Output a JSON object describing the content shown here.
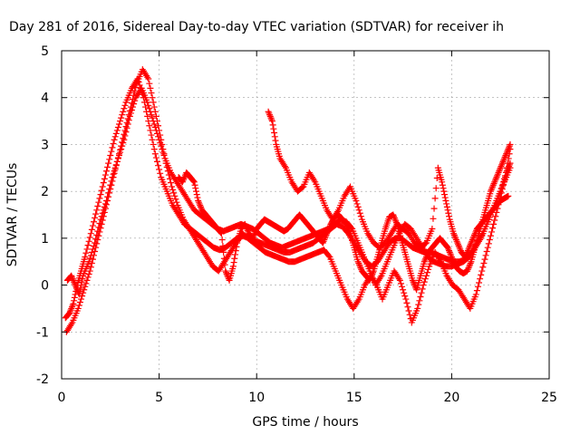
{
  "chart_data": {
    "type": "scatter",
    "title": "Day 281 of 2016, Sidereal Day-to-day VTEC variation (SDTVAR) for receiver ih",
    "xlabel": "GPS time / hours",
    "ylabel": "SDTVAR / TECUs",
    "xlim": [
      0,
      25
    ],
    "ylim": [
      -2,
      5
    ],
    "xticks": [
      "0",
      "5",
      "10",
      "15",
      "20",
      "25"
    ],
    "yticks": [
      "-2",
      "-1",
      "0",
      "1",
      "2",
      "3",
      "4",
      "5"
    ],
    "xtick_values": [
      0,
      5,
      10,
      15,
      20,
      25
    ],
    "ytick_values": [
      -2,
      -1,
      0,
      1,
      2,
      3,
      4,
      5
    ],
    "grid": true,
    "marker": "+",
    "color": "#ff0000",
    "series": [
      {
        "x": [
          0.2,
          0.4,
          0.6,
          0.8,
          1.0,
          1.2,
          1.5,
          1.8,
          2.1,
          2.4,
          2.7,
          3.0,
          3.3,
          3.6,
          3.9,
          4.2,
          4.5,
          4.8,
          5.1,
          5.4,
          5.7,
          6.0,
          6.3,
          6.6,
          6.9,
          7.2,
          7.5,
          7.8,
          8.1,
          8.4,
          8.7,
          9.0,
          9.3,
          9.6,
          9.9,
          10.2,
          10.5,
          10.8,
          11.1,
          11.4,
          11.7,
          12.0,
          12.3,
          12.6,
          12.9,
          13.2,
          13.5,
          13.8,
          14.1,
          14.4,
          14.7,
          15.0,
          15.3,
          15.6,
          15.9,
          16.2,
          16.5,
          16.8,
          17.1,
          17.4,
          17.7,
          18.0,
          18.3,
          18.6,
          18.9,
          19.2,
          19.5,
          19.8,
          20.1,
          20.4,
          20.7,
          21.0,
          21.3,
          21.6,
          21.9,
          22.2,
          22.5,
          22.8,
          23.0
        ],
        "y": [
          -0.7,
          -0.6,
          -0.4,
          0.0,
          0.3,
          0.6,
          1.1,
          1.6,
          2.1,
          2.6,
          3.1,
          3.5,
          3.9,
          4.2,
          4.4,
          4.0,
          3.4,
          2.8,
          2.3,
          2.0,
          1.7,
          1.5,
          1.3,
          1.2,
          1.1,
          1.0,
          0.9,
          0.8,
          0.75,
          0.8,
          0.9,
          1.0,
          1.05,
          1.0,
          0.95,
          0.9,
          0.85,
          0.8,
          0.75,
          0.7,
          0.7,
          0.75,
          0.8,
          0.85,
          0.9,
          1.0,
          1.1,
          1.2,
          1.3,
          1.25,
          1.1,
          0.9,
          0.7,
          0.5,
          0.4,
          0.5,
          0.7,
          0.9,
          1.0,
          1.0,
          0.9,
          0.8,
          0.75,
          0.7,
          0.7,
          0.65,
          0.6,
          0.55,
          0.5,
          0.5,
          0.55,
          0.7,
          0.9,
          1.1,
          1.4,
          1.7,
          2.0,
          2.4,
          2.6
        ]
      },
      {
        "x": [
          0.3,
          0.5,
          0.7,
          0.9,
          1.1,
          1.4,
          1.7,
          2.0,
          2.3,
          2.6,
          2.9,
          3.2,
          3.5,
          3.8,
          4.1,
          4.4,
          4.7,
          5.0,
          5.3,
          5.6,
          5.9,
          6.2,
          6.5,
          6.8,
          7.1,
          7.4,
          7.7,
          8.0,
          8.3,
          8.6,
          8.9,
          9.2,
          9.5,
          9.8,
          10.1,
          10.4,
          10.7,
          11.0,
          11.3,
          11.6,
          11.9,
          12.2,
          12.5,
          12.8,
          13.1,
          13.4,
          13.7,
          14.0,
          14.3,
          14.6,
          14.9,
          15.2,
          15.5,
          15.8,
          16.1,
          16.4,
          16.7,
          17.0,
          17.3,
          17.6,
          17.9,
          18.2,
          18.5,
          18.8,
          19.1,
          19.4,
          19.7,
          20.0,
          20.3,
          20.6,
          20.9,
          21.2,
          21.5,
          21.8,
          22.1,
          22.4,
          22.7,
          23.0
        ],
        "y": [
          0.1,
          0.2,
          0.0,
          -0.2,
          0.2,
          0.5,
          0.9,
          1.4,
          1.8,
          2.3,
          2.7,
          3.1,
          3.6,
          4.0,
          4.2,
          3.9,
          3.5,
          3.1,
          2.7,
          2.4,
          2.2,
          2.0,
          1.8,
          1.6,
          1.5,
          1.4,
          1.3,
          1.2,
          1.15,
          1.2,
          1.25,
          1.3,
          1.25,
          1.2,
          1.1,
          1.0,
          0.9,
          0.85,
          0.8,
          0.85,
          0.9,
          0.95,
          1.0,
          1.05,
          1.1,
          1.15,
          1.2,
          1.3,
          1.4,
          1.35,
          1.2,
          0.9,
          0.6,
          0.3,
          0.0,
          0.2,
          0.5,
          0.8,
          1.1,
          1.3,
          1.2,
          1.0,
          0.8,
          0.6,
          0.5,
          0.45,
          0.4,
          0.4,
          0.45,
          0.5,
          0.6,
          0.8,
          1.0,
          1.3,
          1.6,
          1.9,
          2.2,
          2.5
        ]
      },
      {
        "x": [
          0.25,
          0.55,
          0.85,
          1.15,
          1.45,
          1.75,
          2.05,
          2.35,
          2.65,
          2.95,
          3.25,
          3.55,
          3.85,
          4.15,
          4.45,
          4.75,
          5.05,
          5.35,
          5.65,
          5.95,
          6.25,
          6.55,
          6.85,
          7.15,
          7.45,
          7.75,
          8.05,
          8.35,
          8.65,
          8.95,
          9.25,
          9.55,
          9.85,
          10.15,
          10.45,
          10.75,
          11.05,
          11.35,
          11.65,
          11.95,
          12.25,
          12.55,
          12.85,
          13.15,
          13.45,
          13.75,
          14.05,
          14.35,
          14.65,
          14.95,
          15.25,
          15.55,
          15.85,
          16.15,
          16.45,
          16.75,
          17.05,
          17.35,
          17.65,
          17.95,
          18.25,
          18.55,
          18.85,
          19.15,
          19.45,
          19.75,
          20.05,
          20.35,
          20.65,
          20.95,
          21.25,
          21.55,
          21.85,
          22.15,
          22.45,
          22.75,
          23.0
        ],
        "y": [
          -1.0,
          -0.8,
          -0.5,
          -0.1,
          0.3,
          0.8,
          1.3,
          1.8,
          2.3,
          2.8,
          3.3,
          3.8,
          4.3,
          4.6,
          4.4,
          3.8,
          3.2,
          2.6,
          2.1,
          1.7,
          1.4,
          1.2,
          1.0,
          0.8,
          0.6,
          0.4,
          0.3,
          0.5,
          0.7,
          0.9,
          1.1,
          1.0,
          0.9,
          0.8,
          0.7,
          0.65,
          0.6,
          0.55,
          0.5,
          0.5,
          0.55,
          0.6,
          0.65,
          0.7,
          0.75,
          0.6,
          0.3,
          0.0,
          -0.3,
          -0.5,
          -0.3,
          0.0,
          0.2,
          0.0,
          -0.3,
          0.0,
          0.3,
          0.1,
          -0.3,
          -0.8,
          -0.5,
          0.0,
          0.4,
          0.7,
          0.5,
          0.2,
          0.0,
          -0.1,
          -0.3,
          -0.5,
          -0.2,
          0.3,
          0.8,
          1.3,
          1.8,
          2.3,
          2.9
        ]
      },
      {
        "x": [
          10.6,
          10.8,
          11.0,
          11.2,
          11.5,
          11.8,
          12.1,
          12.4,
          12.7,
          13.0,
          13.3,
          13.6,
          13.9,
          14.2,
          14.5,
          14.8,
          15.1,
          15.4,
          15.7,
          16.0,
          16.3,
          16.6,
          16.9,
          17.2,
          17.5,
          17.8,
          18.1,
          18.4,
          18.7,
          19.0,
          19.3,
          19.5,
          19.7,
          19.9,
          20.1,
          20.3,
          20.5,
          20.7,
          20.9,
          21.1,
          21.3,
          21.5,
          21.7,
          21.9,
          22.1,
          22.3,
          22.5,
          22.7,
          22.9
        ],
        "y": [
          3.7,
          3.5,
          3.0,
          2.7,
          2.5,
          2.2,
          2.0,
          2.1,
          2.4,
          2.2,
          1.9,
          1.6,
          1.4,
          1.6,
          1.9,
          2.1,
          1.8,
          1.4,
          1.1,
          0.9,
          0.8,
          0.9,
          1.1,
          1.3,
          1.2,
          1.1,
          0.9,
          0.8,
          0.9,
          1.2,
          2.5,
          2.2,
          1.8,
          1.4,
          1.1,
          0.9,
          0.7,
          0.6,
          0.8,
          1.0,
          1.2,
          1.3,
          1.4,
          1.5,
          1.6,
          1.7,
          1.8,
          1.85,
          1.9
        ]
      },
      {
        "x": [
          6.0,
          6.2,
          6.4,
          6.6,
          6.8,
          7.0,
          7.2,
          7.4,
          7.6,
          7.8,
          8.0,
          8.2,
          8.4,
          8.6,
          8.8,
          9.0,
          9.2,
          9.4,
          9.6,
          9.8,
          10.0,
          10.2,
          10.4,
          10.6,
          10.8,
          11.0,
          11.2,
          11.4,
          11.6,
          11.8,
          12.0,
          12.2,
          12.4,
          12.6,
          12.8,
          13.0,
          13.2,
          13.4,
          13.6,
          13.8,
          14.0,
          14.2,
          14.4,
          14.6,
          14.8,
          15.0,
          15.2,
          15.4,
          15.6,
          15.8,
          16.0,
          16.2,
          16.4,
          16.6,
          16.8,
          17.0,
          17.2,
          17.4,
          17.6,
          17.8,
          18.0,
          18.2,
          18.4,
          18.6,
          18.8,
          19.0,
          19.2,
          19.4,
          19.6,
          19.8,
          20.0,
          20.2,
          20.4,
          20.6,
          20.8,
          21.0,
          21.2,
          21.4,
          21.6,
          21.8,
          22.0,
          22.2,
          22.4,
          22.6,
          22.8,
          23.0
        ],
        "y": [
          2.3,
          2.2,
          2.4,
          2.3,
          2.2,
          1.8,
          1.6,
          1.5,
          1.4,
          1.3,
          1.2,
          1.1,
          0.3,
          0.1,
          0.4,
          0.9,
          1.2,
          1.3,
          1.1,
          1.0,
          1.2,
          1.3,
          1.4,
          1.35,
          1.3,
          1.25,
          1.2,
          1.15,
          1.2,
          1.3,
          1.4,
          1.5,
          1.4,
          1.3,
          1.2,
          1.1,
          1.0,
          0.9,
          1.1,
          1.3,
          1.45,
          1.5,
          1.4,
          1.3,
          1.1,
          0.8,
          0.5,
          0.3,
          0.2,
          0.1,
          0.3,
          0.6,
          0.9,
          1.2,
          1.45,
          1.5,
          1.3,
          1.0,
          0.7,
          0.4,
          0.1,
          -0.1,
          0.2,
          0.5,
          0.7,
          0.8,
          0.9,
          1.0,
          0.9,
          0.8,
          0.6,
          0.4,
          0.3,
          0.25,
          0.3,
          0.5,
          0.8,
          1.1,
          1.4,
          1.7,
          2.0,
          2.2,
          2.4,
          2.6,
          2.8,
          3.0
        ]
      }
    ]
  }
}
